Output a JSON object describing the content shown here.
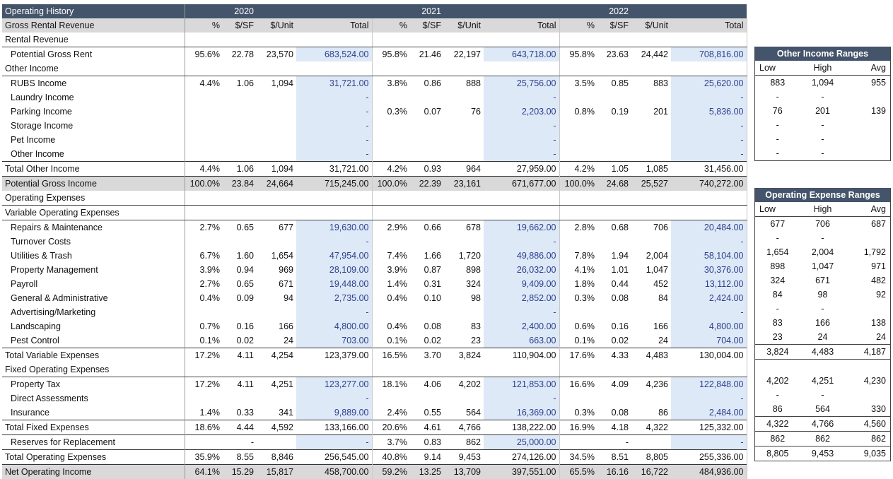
{
  "title": "Operating History",
  "years": [
    "2020",
    "2021",
    "2022"
  ],
  "col_headers": {
    "first": "Gross Rental Revenue",
    "pct": "%",
    "sf": "$/SF",
    "unit": "$/Unit",
    "total": "Total"
  },
  "rows": [
    {
      "label": "Rental Revenue",
      "kind": "sect"
    },
    {
      "label": "Potential Gross Rent",
      "kind": "line",
      "indent": true,
      "input": true,
      "y": [
        [
          "95.6%",
          "22.78",
          "23,570",
          "683,524.00"
        ],
        [
          "95.8%",
          "21.46",
          "22,197",
          "643,718.00"
        ],
        [
          "95.8%",
          "23.63",
          "24,442",
          "708,816.00"
        ]
      ]
    },
    {
      "label": "Other Income",
      "kind": "sect"
    },
    {
      "label": "RUBS Income",
      "kind": "line",
      "indent": true,
      "input": true,
      "y": [
        [
          "4.4%",
          "1.06",
          "1,094",
          "31,721.00"
        ],
        [
          "3.8%",
          "0.86",
          "888",
          "25,756.00"
        ],
        [
          "3.5%",
          "0.85",
          "883",
          "25,620.00"
        ]
      ]
    },
    {
      "label": "Laundry Income",
      "kind": "line",
      "indent": true,
      "input": true,
      "y": [
        [
          "",
          "",
          "",
          "-"
        ],
        [
          "",
          "",
          "",
          "-"
        ],
        [
          "",
          "",
          "",
          "-"
        ]
      ]
    },
    {
      "label": "Parking Income",
      "kind": "line",
      "indent": true,
      "input": true,
      "y": [
        [
          "",
          "",
          "",
          "-"
        ],
        [
          "0.3%",
          "0.07",
          "76",
          "2,203.00"
        ],
        [
          "0.8%",
          "0.19",
          "201",
          "5,836.00"
        ]
      ]
    },
    {
      "label": "Storage Income",
      "kind": "line",
      "indent": true,
      "input": true,
      "y": [
        [
          "",
          "",
          "",
          "-"
        ],
        [
          "",
          "",
          "",
          "-"
        ],
        [
          "",
          "",
          "",
          "-"
        ]
      ]
    },
    {
      "label": "Pet Income",
      "kind": "line",
      "indent": true,
      "input": true,
      "y": [
        [
          "",
          "",
          "",
          "-"
        ],
        [
          "",
          "",
          "",
          "-"
        ],
        [
          "",
          "",
          "",
          "-"
        ]
      ]
    },
    {
      "label": "Other Income",
      "kind": "line",
      "indent": true,
      "input": true,
      "y": [
        [
          "",
          "",
          "",
          "-"
        ],
        [
          "",
          "",
          "",
          "-"
        ],
        [
          "",
          "",
          "",
          "-"
        ]
      ]
    },
    {
      "label": "Total Other Income",
      "kind": "tot",
      "y": [
        [
          "4.4%",
          "1.06",
          "1,094",
          "31,721.00"
        ],
        [
          "4.2%",
          "0.93",
          "964",
          "27,959.00"
        ],
        [
          "4.2%",
          "1.05",
          "1,085",
          "31,456.00"
        ]
      ]
    },
    {
      "label": "Potential Gross Income",
      "kind": "band",
      "y": [
        [
          "100.0%",
          "23.84",
          "24,664",
          "715,245.00"
        ],
        [
          "100.0%",
          "22.39",
          "23,161",
          "671,677.00"
        ],
        [
          "100.0%",
          "24.68",
          "25,527",
          "740,272.00"
        ]
      ]
    },
    {
      "label": "Operating Expenses",
      "kind": "sect"
    },
    {
      "label": "Variable Operating Expenses",
      "kind": "sub"
    },
    {
      "label": "Repairs & Maintenance",
      "kind": "line",
      "indent": true,
      "input": true,
      "y": [
        [
          "2.7%",
          "0.65",
          "677",
          "19,630.00"
        ],
        [
          "2.9%",
          "0.66",
          "678",
          "19,662.00"
        ],
        [
          "2.8%",
          "0.68",
          "706",
          "20,484.00"
        ]
      ]
    },
    {
      "label": "Turnover Costs",
      "kind": "line",
      "indent": true,
      "input": true,
      "y": [
        [
          "",
          "",
          "",
          "-"
        ],
        [
          "",
          "",
          "",
          "-"
        ],
        [
          "",
          "",
          "",
          "-"
        ]
      ]
    },
    {
      "label": "Utilities & Trash",
      "kind": "line",
      "indent": true,
      "input": true,
      "y": [
        [
          "6.7%",
          "1.60",
          "1,654",
          "47,954.00"
        ],
        [
          "7.4%",
          "1.66",
          "1,720",
          "49,886.00"
        ],
        [
          "7.8%",
          "1.94",
          "2,004",
          "58,104.00"
        ]
      ]
    },
    {
      "label": "Property Management",
      "kind": "line",
      "indent": true,
      "input": true,
      "y": [
        [
          "3.9%",
          "0.94",
          "969",
          "28,109.00"
        ],
        [
          "3.9%",
          "0.87",
          "898",
          "26,032.00"
        ],
        [
          "4.1%",
          "1.01",
          "1,047",
          "30,376.00"
        ]
      ]
    },
    {
      "label": "Payroll",
      "kind": "line",
      "indent": true,
      "input": true,
      "y": [
        [
          "2.7%",
          "0.65",
          "671",
          "19,448.00"
        ],
        [
          "1.4%",
          "0.31",
          "324",
          "9,409.00"
        ],
        [
          "1.8%",
          "0.44",
          "452",
          "13,112.00"
        ]
      ]
    },
    {
      "label": "General & Administrative",
      "kind": "line",
      "indent": true,
      "input": true,
      "y": [
        [
          "0.4%",
          "0.09",
          "94",
          "2,735.00"
        ],
        [
          "0.4%",
          "0.10",
          "98",
          "2,852.00"
        ],
        [
          "0.3%",
          "0.08",
          "84",
          "2,424.00"
        ]
      ]
    },
    {
      "label": "Advertising/Marketing",
      "kind": "line",
      "indent": true,
      "input": true,
      "y": [
        [
          "",
          "",
          "",
          "-"
        ],
        [
          "",
          "",
          "",
          "-"
        ],
        [
          "",
          "",
          "",
          "-"
        ]
      ]
    },
    {
      "label": "Landscaping",
      "kind": "line",
      "indent": true,
      "input": true,
      "y": [
        [
          "0.7%",
          "0.16",
          "166",
          "4,800.00"
        ],
        [
          "0.4%",
          "0.08",
          "83",
          "2,400.00"
        ],
        [
          "0.6%",
          "0.16",
          "166",
          "4,800.00"
        ]
      ]
    },
    {
      "label": "Pest Control",
      "kind": "line",
      "indent": true,
      "input": true,
      "y": [
        [
          "0.1%",
          "0.02",
          "24",
          "703.00"
        ],
        [
          "0.1%",
          "0.02",
          "23",
          "663.00"
        ],
        [
          "0.1%",
          "0.02",
          "24",
          "704.00"
        ]
      ]
    },
    {
      "label": "Total Variable Expenses",
      "kind": "tot",
      "y": [
        [
          "17.2%",
          "4.11",
          "4,254",
          "123,379.00"
        ],
        [
          "16.5%",
          "3.70",
          "3,824",
          "110,904.00"
        ],
        [
          "17.6%",
          "4.33",
          "4,483",
          "130,004.00"
        ]
      ]
    },
    {
      "label": "Fixed Operating Expenses",
      "kind": "sub"
    },
    {
      "label": "Property Tax",
      "kind": "line",
      "indent": true,
      "input": true,
      "y": [
        [
          "17.2%",
          "4.11",
          "4,251",
          "123,277.00"
        ],
        [
          "18.1%",
          "4.06",
          "4,202",
          "121,853.00"
        ],
        [
          "16.6%",
          "4.09",
          "4,236",
          "122,848.00"
        ]
      ]
    },
    {
      "label": "Direct Assessments",
      "kind": "line",
      "indent": true,
      "input": true,
      "y": [
        [
          "",
          "",
          "",
          "-"
        ],
        [
          "",
          "",
          "",
          "-"
        ],
        [
          "",
          "",
          "",
          "-"
        ]
      ]
    },
    {
      "label": "Insurance",
      "kind": "line",
      "indent": true,
      "input": true,
      "y": [
        [
          "1.4%",
          "0.33",
          "341",
          "9,889.00"
        ],
        [
          "2.4%",
          "0.55",
          "564",
          "16,369.00"
        ],
        [
          "0.3%",
          "0.08",
          "86",
          "2,484.00"
        ]
      ]
    },
    {
      "label": "Total Fixed Expenses",
      "kind": "tot",
      "y": [
        [
          "18.6%",
          "4.44",
          "4,592",
          "133,166.00"
        ],
        [
          "20.6%",
          "4.61",
          "4,766",
          "138,222.00"
        ],
        [
          "16.9%",
          "4.18",
          "4,322",
          "125,332.00"
        ]
      ]
    },
    {
      "label": "Reserves for Replacement",
      "kind": "tot",
      "indent": true,
      "input": true,
      "y": [
        [
          "",
          "-",
          "",
          "-"
        ],
        [
          "3.7%",
          "0.83",
          "862",
          "25,000.00"
        ],
        [
          "",
          "-",
          "",
          "-"
        ]
      ]
    },
    {
      "label": "Total Operating Expenses",
      "kind": "tot",
      "y": [
        [
          "35.9%",
          "8.55",
          "8,846",
          "256,545.00"
        ],
        [
          "40.8%",
          "9.14",
          "9,453",
          "274,126.00"
        ],
        [
          "34.5%",
          "8.51",
          "8,805",
          "255,336.00"
        ]
      ]
    },
    {
      "label": "Net Operating Income",
      "kind": "noi",
      "y": [
        [
          "64.1%",
          "15.29",
          "15,817",
          "458,700.00"
        ],
        [
          "59.2%",
          "13.25",
          "13,709",
          "397,551.00"
        ],
        [
          "65.5%",
          "16.16",
          "16,722",
          "484,936.00"
        ]
      ]
    }
  ],
  "other_income_ranges": {
    "title": "Other Income Ranges",
    "headers": [
      "Low",
      "High",
      "Avg"
    ],
    "rows": [
      [
        "883",
        "1,094",
        "955"
      ],
      [
        "-",
        "-",
        ""
      ],
      [
        "76",
        "201",
        "139"
      ],
      [
        "-",
        "-",
        ""
      ],
      [
        "-",
        "-",
        ""
      ],
      [
        "-",
        "-",
        ""
      ]
    ]
  },
  "operating_expense_ranges": {
    "title": "Operating Expense Ranges",
    "headers": [
      "Low",
      "High",
      "Avg"
    ],
    "rows": [
      {
        "v": [
          "677",
          "706",
          "687"
        ]
      },
      {
        "v": [
          "-",
          "-",
          ""
        ]
      },
      {
        "v": [
          "1,654",
          "2,004",
          "1,792"
        ]
      },
      {
        "v": [
          "898",
          "1,047",
          "971"
        ]
      },
      {
        "v": [
          "324",
          "671",
          "482"
        ]
      },
      {
        "v": [
          "84",
          "98",
          "92"
        ]
      },
      {
        "v": [
          "-",
          "-",
          ""
        ]
      },
      {
        "v": [
          "83",
          "166",
          "138"
        ]
      },
      {
        "v": [
          "23",
          "24",
          "24"
        ]
      },
      {
        "v": [
          "3,824",
          "4,483",
          "4,187"
        ],
        "kind": "tot"
      },
      {
        "v": [
          "",
          "",
          ""
        ],
        "kind": "gap"
      },
      {
        "v": [
          "4,202",
          "4,251",
          "4,230"
        ]
      },
      {
        "v": [
          "-",
          "-",
          ""
        ]
      },
      {
        "v": [
          "86",
          "564",
          "330"
        ]
      },
      {
        "v": [
          "4,322",
          "4,766",
          "4,560"
        ],
        "kind": "tot"
      },
      {
        "v": [
          "862",
          "862",
          "862"
        ],
        "kind": "tot"
      },
      {
        "v": [
          "8,805",
          "9,453",
          "9,035"
        ],
        "kind": "tot"
      }
    ]
  }
}
